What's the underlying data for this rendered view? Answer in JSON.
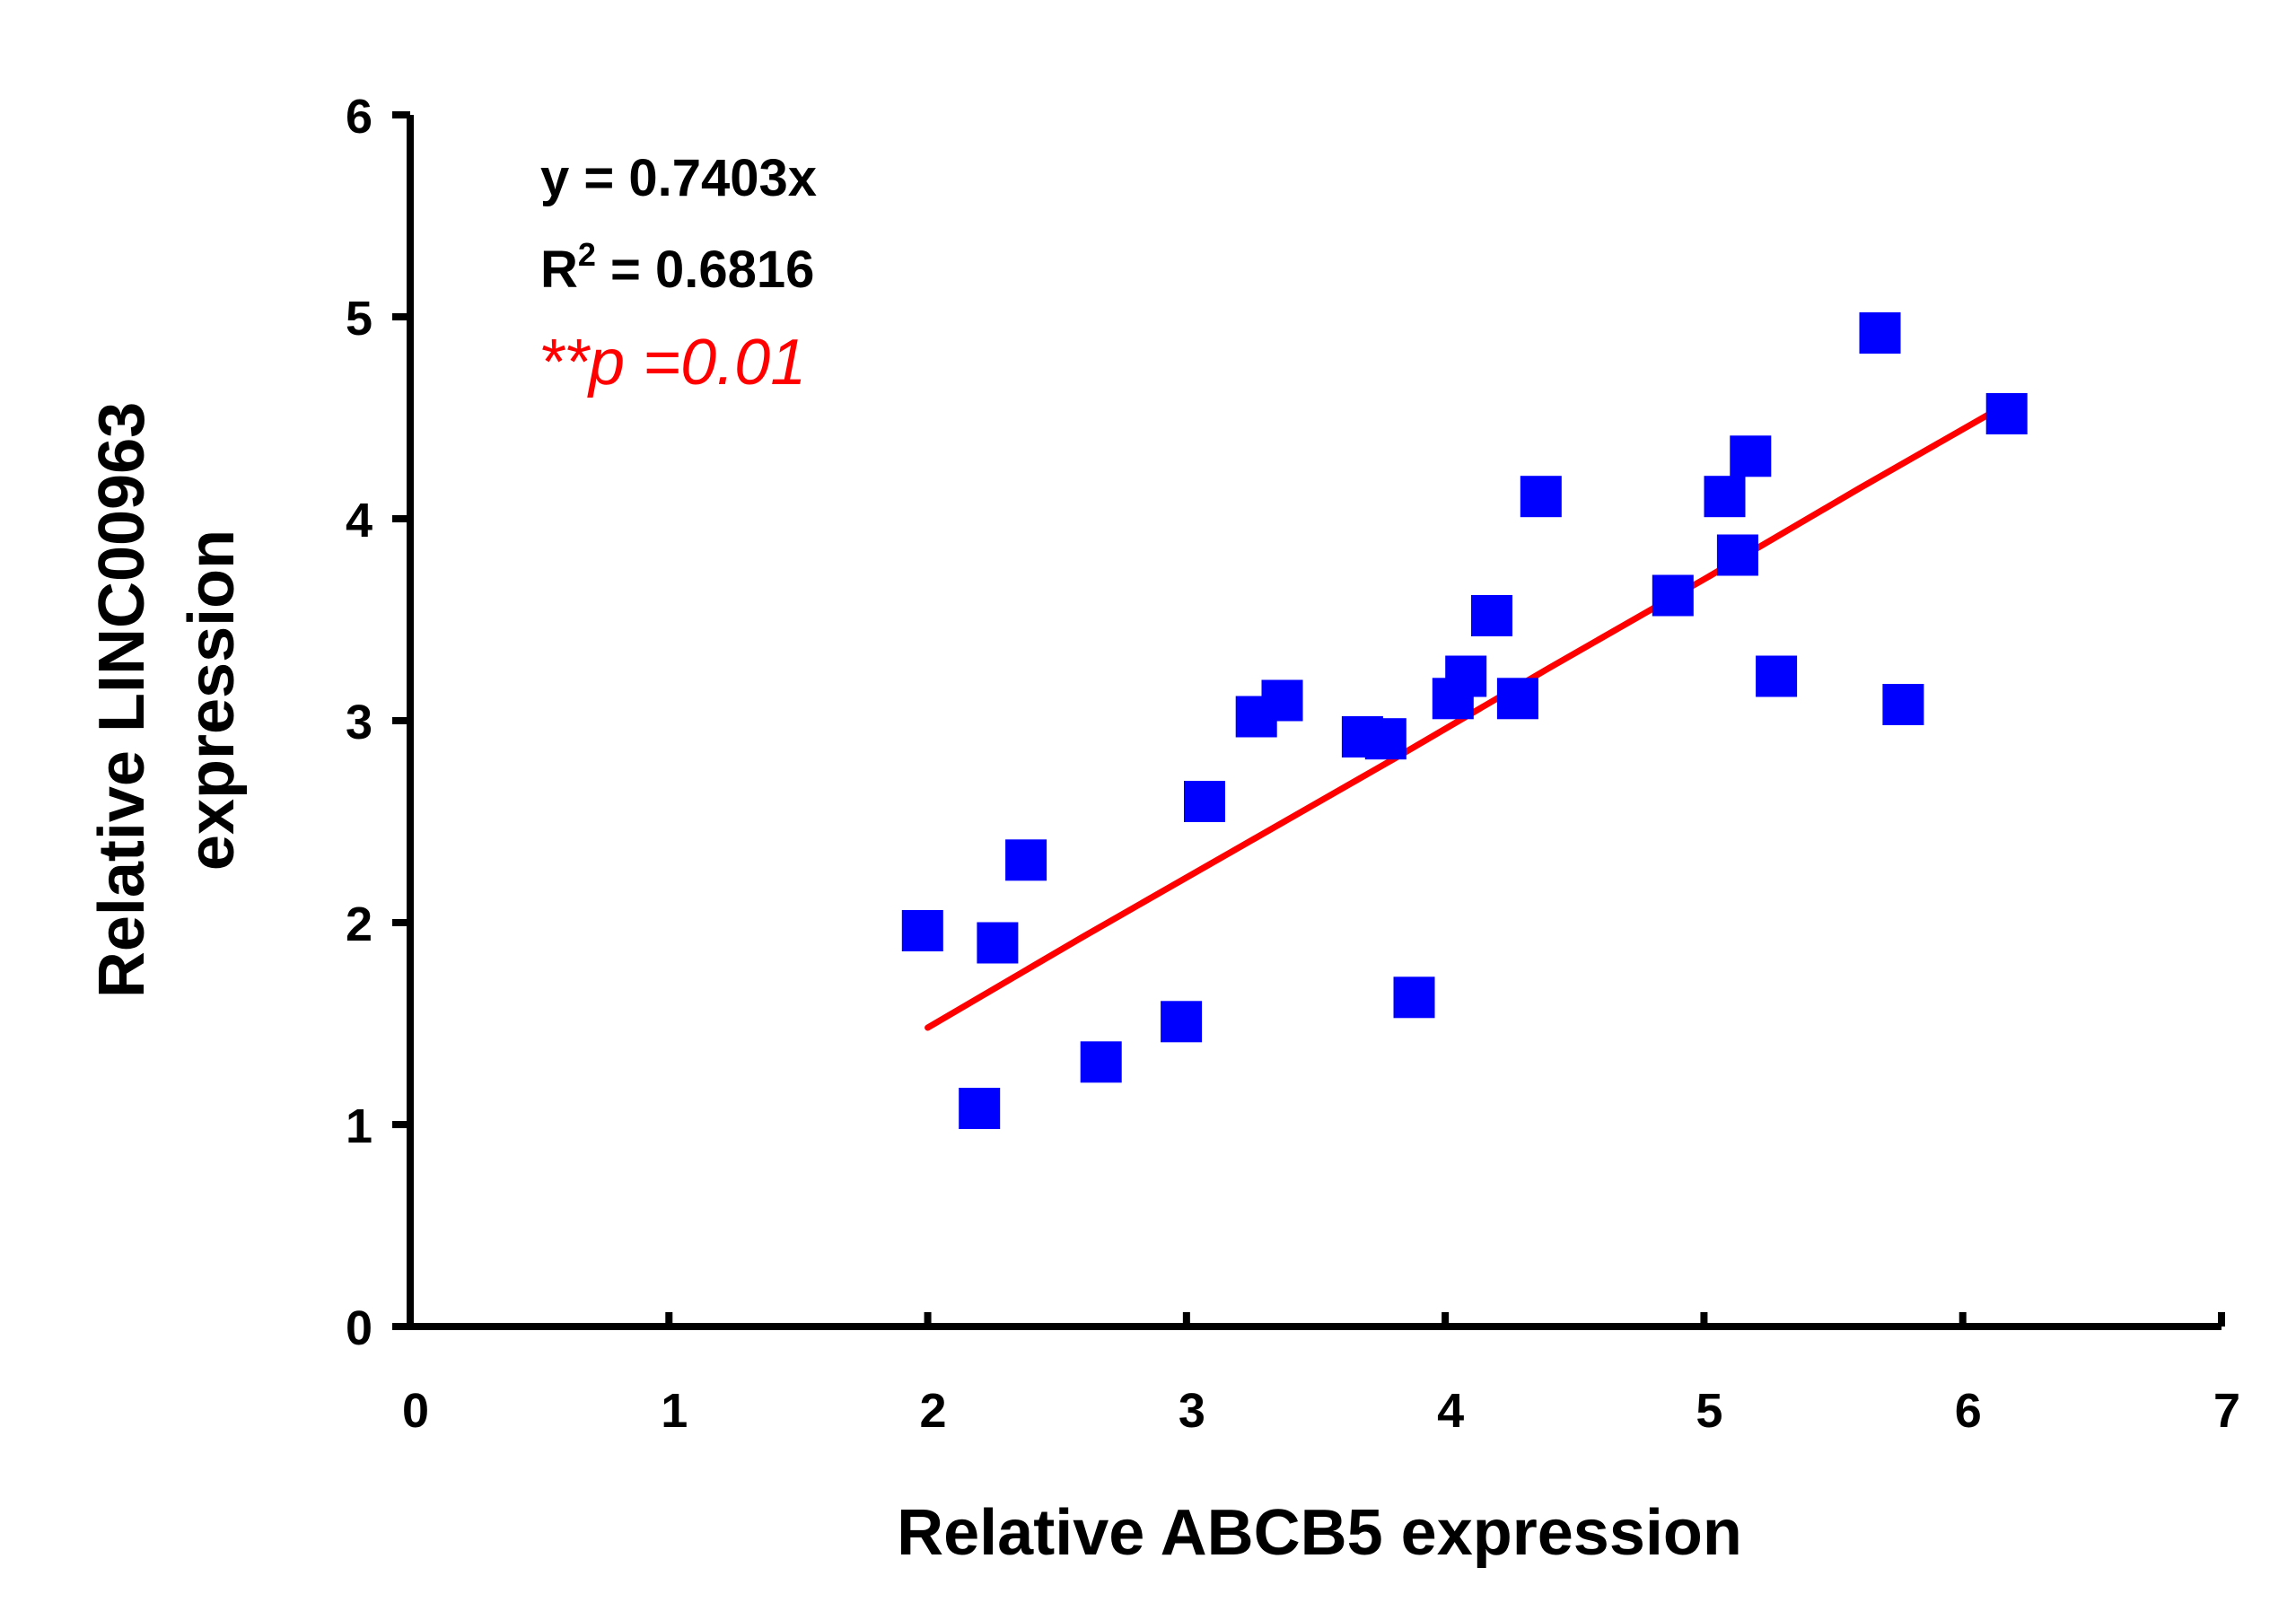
{
  "chart_data": {
    "type": "scatter",
    "title": "",
    "xlabel": "Relative ABCB5  expression",
    "ylabel_lines": [
      "Relative LINC00963",
      "expression"
    ],
    "xlim": [
      0,
      7
    ],
    "ylim": [
      0,
      6
    ],
    "x_ticks": [
      0,
      1,
      2,
      3,
      4,
      5,
      6,
      7
    ],
    "y_ticks": [
      0,
      1,
      2,
      3,
      4,
      5,
      6
    ],
    "x_tick_labels": [
      "0",
      "1",
      "2",
      "3",
      "4",
      "5",
      "6",
      "7"
    ],
    "y_tick_labels": [
      "0",
      "1",
      "2",
      "3",
      "4",
      "5",
      "6"
    ],
    "grid": false,
    "point_color": "#0000ff",
    "marker": "square",
    "points": [
      {
        "x": 1.98,
        "y": 1.96
      },
      {
        "x": 2.2,
        "y": 1.08
      },
      {
        "x": 2.27,
        "y": 1.9
      },
      {
        "x": 2.38,
        "y": 2.31
      },
      {
        "x": 2.67,
        "y": 1.31
      },
      {
        "x": 2.98,
        "y": 1.51
      },
      {
        "x": 3.07,
        "y": 2.6
      },
      {
        "x": 3.27,
        "y": 3.02
      },
      {
        "x": 3.37,
        "y": 3.1
      },
      {
        "x": 3.68,
        "y": 2.92
      },
      {
        "x": 3.77,
        "y": 2.91
      },
      {
        "x": 3.88,
        "y": 1.63
      },
      {
        "x": 4.03,
        "y": 3.11
      },
      {
        "x": 4.08,
        "y": 3.22
      },
      {
        "x": 4.18,
        "y": 3.52
      },
      {
        "x": 4.28,
        "y": 3.11
      },
      {
        "x": 4.37,
        "y": 4.11
      },
      {
        "x": 4.88,
        "y": 3.62
      },
      {
        "x": 5.08,
        "y": 4.11
      },
      {
        "x": 5.13,
        "y": 3.82
      },
      {
        "x": 5.18,
        "y": 4.31
      },
      {
        "x": 5.28,
        "y": 3.22
      },
      {
        "x": 5.68,
        "y": 4.92
      },
      {
        "x": 5.77,
        "y": 3.08
      },
      {
        "x": 6.17,
        "y": 4.52
      }
    ],
    "fit_line": {
      "color": "#ff0000",
      "points": [
        {
          "x": 2.0,
          "y": 1.48
        },
        {
          "x": 2.6,
          "y": 1.93
        },
        {
          "x": 3.2,
          "y": 2.37
        },
        {
          "x": 3.8,
          "y": 2.81
        },
        {
          "x": 4.4,
          "y": 3.26
        },
        {
          "x": 5.0,
          "y": 3.7
        },
        {
          "x": 5.6,
          "y": 4.15
        },
        {
          "x": 6.2,
          "y": 4.59
        }
      ]
    },
    "annotations": {
      "equation": "y = 0.7403x",
      "r_squared_label": "R",
      "r_squared_exp": "2",
      "r_squared_value": " = 0.6816",
      "p_value": "**p =0.01",
      "p_color": "#ff0000"
    }
  }
}
